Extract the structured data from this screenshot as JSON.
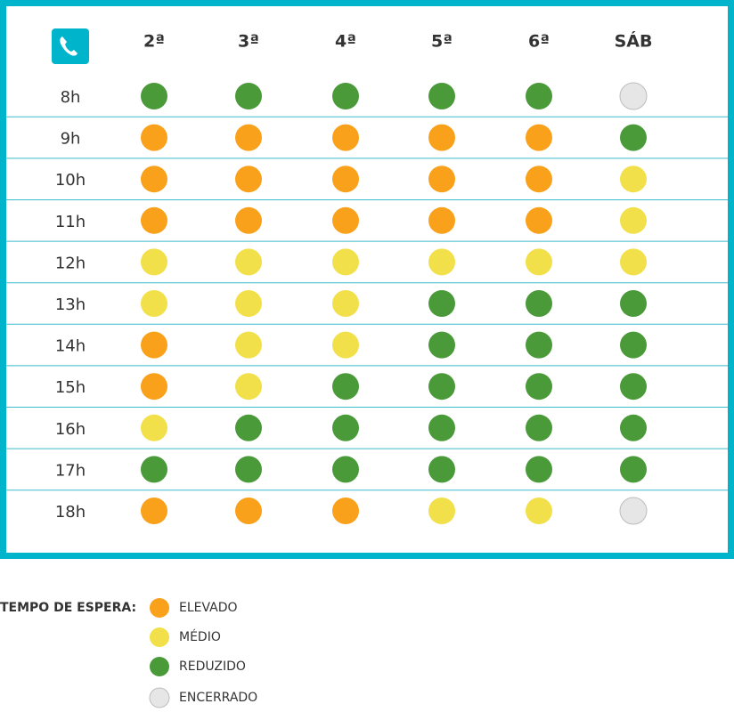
{
  "header": {
    "columns": [
      "2ª",
      "3ª",
      "4ª",
      "5ª",
      "6ª",
      "SÁB"
    ]
  },
  "table": {
    "rows": [
      {
        "label": "8h",
        "cells": [
          "REDUZIDO",
          "REDUZIDO",
          "REDUZIDO",
          "REDUZIDO",
          "REDUZIDO",
          "ENCERRADO"
        ]
      },
      {
        "label": "9h",
        "cells": [
          "ELEVADO",
          "ELEVADO",
          "ELEVADO",
          "ELEVADO",
          "ELEVADO",
          "REDUZIDO"
        ]
      },
      {
        "label": "10h",
        "cells": [
          "ELEVADO",
          "ELEVADO",
          "ELEVADO",
          "ELEVADO",
          "ELEVADO",
          "MÉDIO"
        ]
      },
      {
        "label": "11h",
        "cells": [
          "ELEVADO",
          "ELEVADO",
          "ELEVADO",
          "ELEVADO",
          "ELEVADO",
          "MÉDIO"
        ]
      },
      {
        "label": "12h",
        "cells": [
          "MÉDIO",
          "MÉDIO",
          "MÉDIO",
          "MÉDIO",
          "MÉDIO",
          "MÉDIO"
        ]
      },
      {
        "label": "13h",
        "cells": [
          "MÉDIO",
          "MÉDIO",
          "MÉDIO",
          "REDUZIDO",
          "REDUZIDO",
          "REDUZIDO"
        ]
      },
      {
        "label": "14h",
        "cells": [
          "ELEVADO",
          "MÉDIO",
          "MÉDIO",
          "REDUZIDO",
          "REDUZIDO",
          "REDUZIDO"
        ]
      },
      {
        "label": "15h",
        "cells": [
          "ELEVADO",
          "MÉDIO",
          "REDUZIDO",
          "REDUZIDO",
          "REDUZIDO",
          "REDUZIDO"
        ]
      },
      {
        "label": "16h",
        "cells": [
          "MÉDIO",
          "REDUZIDO",
          "REDUZIDO",
          "REDUZIDO",
          "REDUZIDO",
          "REDUZIDO"
        ]
      },
      {
        "label": "17h",
        "cells": [
          "REDUZIDO",
          "REDUZIDO",
          "REDUZIDO",
          "REDUZIDO",
          "REDUZIDO",
          "REDUZIDO"
        ]
      },
      {
        "label": "18h",
        "cells": [
          "ELEVADO",
          "ELEVADO",
          "ELEVADO",
          "MÉDIO",
          "MÉDIO",
          "ENCERRADO"
        ]
      }
    ]
  },
  "legend": {
    "title": "TEMPO DE ESPERA:",
    "items": [
      {
        "label": "ELEVADO",
        "color": "#f9a11b"
      },
      {
        "label": "MÉDIO",
        "color": "#f2e04a"
      },
      {
        "label": "REDUZIDO",
        "color": "#4a9a3a"
      },
      {
        "label": "ENCERRADO",
        "color": "#e6e6e6"
      }
    ]
  }
}
